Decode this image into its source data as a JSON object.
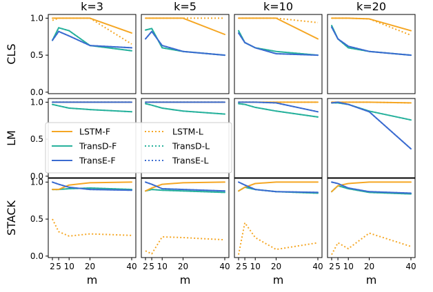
{
  "colors": {
    "LSTM": "#f5a623",
    "TransD": "#26b19c",
    "TransE": "#3a6bd0"
  },
  "chart_data": {
    "type": "line",
    "xlabel": "m",
    "x": [
      2,
      5,
      10,
      20,
      40
    ],
    "xticks": [
      {
        "value": 2,
        "label": "2"
      },
      {
        "value": 5,
        "label": "5"
      },
      {
        "value": 10,
        "label": "10"
      },
      {
        "value": 20,
        "label": "20"
      },
      {
        "value": 40,
        "label": "40"
      }
    ],
    "ylim": [
      -0.02,
      1.05
    ],
    "yticks": [
      {
        "value": 0.0,
        "label": "0.0"
      },
      {
        "value": 0.5,
        "label": "0.5"
      },
      {
        "value": 1.0,
        "label": "1.0"
      }
    ],
    "columns": [
      "k=3",
      "k=5",
      "k=10",
      "k=20"
    ],
    "rows": [
      "CLS",
      "LM",
      "STACK"
    ],
    "legend": {
      "placement": "LM row, first panels",
      "entries": [
        {
          "name": "LSTM-F",
          "color": "LSTM",
          "style": "solid"
        },
        {
          "name": "TransD-F",
          "color": "TransD",
          "style": "solid"
        },
        {
          "name": "TransE-F",
          "color": "TransE",
          "style": "solid"
        },
        {
          "name": "LSTM-L",
          "color": "LSTM",
          "style": "dotted"
        },
        {
          "name": "TransD-L",
          "color": "TransD",
          "style": "dotted"
        },
        {
          "name": "TransE-L",
          "color": "TransE",
          "style": "dotted"
        }
      ]
    },
    "panels": [
      [
        {
          "series": [
            {
              "name": "LSTM-F",
              "values": [
                1.0,
                1.0,
                1.0,
                1.0,
                0.8
              ]
            },
            {
              "name": "TransD-F",
              "values": [
                0.7,
                0.87,
                0.83,
                0.63,
                0.56
              ]
            },
            {
              "name": "TransE-F",
              "values": [
                0.7,
                0.82,
                0.76,
                0.63,
                0.6
              ]
            },
            {
              "name": "LSTM-L",
              "values": [
                0.97,
                1.0,
                1.0,
                1.0,
                0.65
              ]
            },
            {
              "name": "TransD-L",
              "values": [
                0.7,
                0.87,
                0.83,
                0.63,
                0.56
              ]
            },
            {
              "name": "TransE-L",
              "values": [
                0.7,
                0.82,
                0.76,
                0.63,
                0.6
              ]
            }
          ]
        },
        {
          "series": [
            {
              "name": "LSTM-F",
              "values": [
                1.0,
                1.0,
                1.0,
                1.0,
                0.78
              ]
            },
            {
              "name": "TransD-F",
              "values": [
                0.84,
                0.86,
                0.6,
                0.55,
                0.5
              ]
            },
            {
              "name": "TransE-F",
              "values": [
                0.72,
                0.82,
                0.63,
                0.55,
                0.5
              ]
            },
            {
              "name": "LSTM-L",
              "values": [
                1.0,
                1.0,
                1.0,
                1.0,
                1.0
              ]
            },
            {
              "name": "TransD-L",
              "values": [
                0.84,
                0.86,
                0.6,
                0.55,
                0.5
              ]
            },
            {
              "name": "TransE-L",
              "values": [
                0.72,
                0.82,
                0.63,
                0.55,
                0.5
              ]
            }
          ]
        },
        {
          "series": [
            {
              "name": "LSTM-F",
              "values": [
                1.0,
                1.0,
                1.0,
                1.0,
                0.72
              ]
            },
            {
              "name": "TransD-F",
              "values": [
                0.83,
                0.67,
                0.6,
                0.55,
                0.5
              ]
            },
            {
              "name": "TransE-F",
              "values": [
                0.8,
                0.67,
                0.6,
                0.52,
                0.5
              ]
            },
            {
              "name": "LSTM-L",
              "values": [
                1.0,
                1.0,
                1.0,
                1.0,
                0.94
              ]
            },
            {
              "name": "TransD-L",
              "values": [
                0.83,
                0.67,
                0.6,
                0.55,
                0.5
              ]
            },
            {
              "name": "TransE-L",
              "values": [
                0.8,
                0.67,
                0.6,
                0.52,
                0.5
              ]
            }
          ]
        },
        {
          "series": [
            {
              "name": "LSTM-F",
              "values": [
                1.0,
                1.0,
                1.0,
                0.99,
                0.83
              ]
            },
            {
              "name": "TransD-F",
              "values": [
                0.9,
                0.72,
                0.6,
                0.55,
                0.5
              ]
            },
            {
              "name": "TransE-F",
              "values": [
                0.88,
                0.72,
                0.62,
                0.55,
                0.5
              ]
            },
            {
              "name": "LSTM-L",
              "values": [
                1.0,
                1.0,
                1.0,
                0.99,
                0.77
              ]
            },
            {
              "name": "TransD-L",
              "values": [
                0.9,
                0.72,
                0.6,
                0.55,
                0.5
              ]
            },
            {
              "name": "TransE-L",
              "values": [
                0.88,
                0.72,
                0.62,
                0.55,
                0.5
              ]
            }
          ]
        }
      ],
      [
        {
          "series": [
            {
              "name": "LSTM-F",
              "values": [
                1.0,
                1.0,
                1.0,
                1.0,
                1.0
              ]
            },
            {
              "name": "TransD-F",
              "values": [
                0.97,
                0.95,
                0.92,
                0.9,
                0.87
              ]
            },
            {
              "name": "TransE-F",
              "values": [
                1.0,
                1.0,
                1.0,
                1.0,
                1.0
              ]
            },
            {
              "name": "LSTM-L",
              "values": [
                1.0,
                1.0,
                1.0,
                1.0,
                1.0
              ]
            },
            {
              "name": "TransD-L",
              "values": [
                0.97,
                0.95,
                0.92,
                0.9,
                0.87
              ]
            },
            {
              "name": "TransE-L",
              "values": [
                1.0,
                1.0,
                1.0,
                1.0,
                1.0
              ]
            }
          ]
        },
        {
          "series": [
            {
              "name": "LSTM-F",
              "values": [
                1.0,
                1.0,
                1.0,
                1.0,
                1.0
              ]
            },
            {
              "name": "TransD-F",
              "values": [
                0.98,
                0.96,
                0.92,
                0.88,
                0.84
              ]
            },
            {
              "name": "TransE-F",
              "values": [
                1.0,
                1.0,
                1.0,
                1.0,
                1.0
              ]
            },
            {
              "name": "LSTM-L",
              "values": [
                1.0,
                1.0,
                1.0,
                1.0,
                1.0
              ]
            },
            {
              "name": "TransD-L",
              "values": [
                0.98,
                0.96,
                0.92,
                0.88,
                0.84
              ]
            },
            {
              "name": "TransE-L",
              "values": [
                1.0,
                1.0,
                1.0,
                1.0,
                1.0
              ]
            }
          ]
        },
        {
          "series": [
            {
              "name": "LSTM-F",
              "values": [
                1.0,
                1.0,
                1.0,
                1.0,
                1.0
              ]
            },
            {
              "name": "TransD-F",
              "values": [
                0.98,
                0.97,
                0.93,
                0.88,
                0.8
              ]
            },
            {
              "name": "TransE-F",
              "values": [
                1.0,
                1.0,
                1.0,
                0.99,
                0.87
              ]
            },
            {
              "name": "LSTM-L",
              "values": [
                1.0,
                1.0,
                1.0,
                1.0,
                1.0
              ]
            },
            {
              "name": "TransD-L",
              "values": [
                0.98,
                0.97,
                0.93,
                0.88,
                0.8
              ]
            },
            {
              "name": "TransE-L",
              "values": [
                1.0,
                1.0,
                1.0,
                0.99,
                0.87
              ]
            }
          ]
        },
        {
          "series": [
            {
              "name": "LSTM-F",
              "values": [
                1.0,
                1.0,
                1.0,
                1.0,
                0.99
              ]
            },
            {
              "name": "TransD-F",
              "values": [
                0.99,
                0.99,
                0.97,
                0.88,
                0.76
              ]
            },
            {
              "name": "TransE-F",
              "values": [
                0.99,
                1.0,
                0.97,
                0.87,
                0.37
              ]
            },
            {
              "name": "LSTM-L",
              "values": [
                1.0,
                1.0,
                1.0,
                1.0,
                0.99
              ]
            },
            {
              "name": "TransD-L",
              "values": [
                0.99,
                0.99,
                0.97,
                0.88,
                0.76
              ]
            },
            {
              "name": "TransE-L",
              "values": [
                0.99,
                1.0,
                0.97,
                0.87,
                0.37
              ]
            }
          ]
        }
      ],
      [
        {
          "series": [
            {
              "name": "LSTM-F",
              "values": [
                0.9,
                0.9,
                0.96,
                0.99,
                1.0
              ]
            },
            {
              "name": "TransD-F",
              "values": [
                0.9,
                0.9,
                0.91,
                0.92,
                0.9
              ]
            },
            {
              "name": "TransE-F",
              "values": [
                1.0,
                0.97,
                0.93,
                0.9,
                0.89
              ]
            },
            {
              "name": "LSTM-L",
              "values": [
                0.5,
                0.33,
                0.27,
                0.3,
                0.28
              ]
            },
            {
              "name": "TransD-L",
              "values": [
                0.9,
                0.9,
                0.91,
                0.92,
                0.9
              ]
            },
            {
              "name": "TransE-L",
              "values": [
                1.0,
                0.97,
                0.93,
                0.9,
                0.89
              ]
            }
          ]
        },
        {
          "series": [
            {
              "name": "LSTM-F",
              "values": [
                0.88,
                0.92,
                0.97,
                0.99,
                1.0
              ]
            },
            {
              "name": "TransD-F",
              "values": [
                0.88,
                0.9,
                0.89,
                0.88,
                0.86
              ]
            },
            {
              "name": "TransE-F",
              "values": [
                1.0,
                0.97,
                0.91,
                0.9,
                0.88
              ]
            },
            {
              "name": "LSTM-L",
              "values": [
                0.07,
                0.03,
                0.26,
                0.25,
                0.22
              ]
            },
            {
              "name": "TransD-L",
              "values": [
                0.88,
                0.9,
                0.89,
                0.88,
                0.86
              ]
            },
            {
              "name": "TransE-L",
              "values": [
                1.0,
                0.97,
                0.91,
                0.9,
                0.88
              ]
            }
          ]
        },
        {
          "series": [
            {
              "name": "LSTM-F",
              "values": [
                0.88,
                0.93,
                0.98,
                1.0,
                1.0
              ]
            },
            {
              "name": "TransD-F",
              "values": [
                0.88,
                0.93,
                0.9,
                0.87,
                0.85
              ]
            },
            {
              "name": "TransE-F",
              "values": [
                1.0,
                0.96,
                0.9,
                0.87,
                0.86
              ]
            },
            {
              "name": "LSTM-L",
              "values": [
                0.02,
                0.45,
                0.25,
                0.09,
                0.18
              ]
            },
            {
              "name": "TransD-L",
              "values": [
                0.88,
                0.93,
                0.9,
                0.87,
                0.85
              ]
            },
            {
              "name": "TransE-L",
              "values": [
                1.0,
                0.96,
                0.9,
                0.87,
                0.86
              ]
            }
          ]
        },
        {
          "series": [
            {
              "name": "LSTM-F",
              "values": [
                0.87,
                0.95,
                0.98,
                1.0,
                1.0
              ]
            },
            {
              "name": "TransD-F",
              "values": [
                0.87,
                0.95,
                0.91,
                0.86,
                0.84
              ]
            },
            {
              "name": "TransE-F",
              "values": [
                1.0,
                0.98,
                0.92,
                0.87,
                0.85
              ]
            },
            {
              "name": "LSTM-L",
              "values": [
                0.02,
                0.18,
                0.1,
                0.31,
                0.13
              ]
            },
            {
              "name": "TransD-L",
              "values": [
                0.87,
                0.95,
                0.91,
                0.86,
                0.84
              ]
            },
            {
              "name": "TransE-L",
              "values": [
                1.0,
                0.98,
                0.92,
                0.87,
                0.85
              ]
            }
          ]
        }
      ]
    ]
  }
}
